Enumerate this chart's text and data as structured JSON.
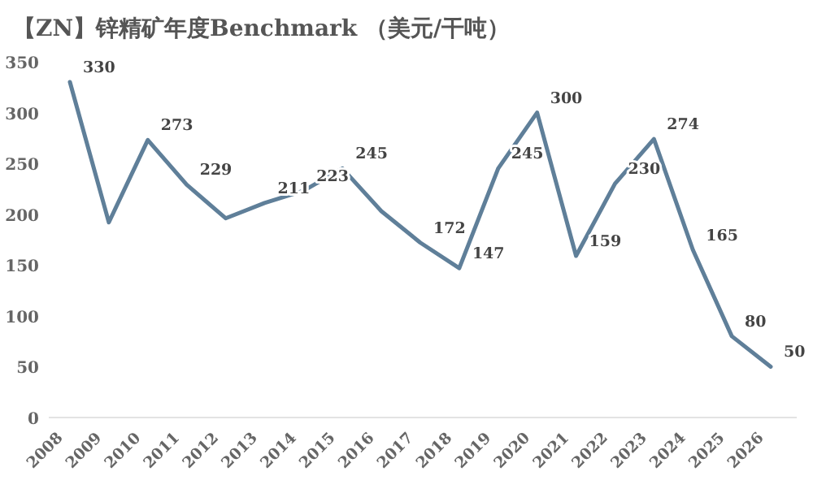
{
  "chart_data": {
    "type": "line",
    "title": "【ZN】锌精矿年度Benchmark （美元/干吨）",
    "categories": [
      "2008",
      "2009",
      "2010",
      "2011",
      "2012",
      "2013",
      "2014",
      "2015",
      "2016",
      "2017",
      "2018",
      "2019",
      "2020",
      "2021",
      "2022",
      "2023",
      "2024",
      "2025",
      "2026"
    ],
    "values": [
      330,
      192,
      273,
      229,
      196,
      211,
      223,
      245,
      203,
      172,
      147,
      245,
      300,
      159,
      230,
      274,
      165,
      80,
      50
    ],
    "value_labels": [
      "330",
      null,
      "273",
      "229",
      null,
      "211",
      "223",
      "245",
      null,
      "172",
      "147",
      "245",
      "300",
      "159",
      "230",
      "274",
      "165",
      "80",
      "50"
    ],
    "color": "#5f7f99",
    "ylim": [
      0,
      350
    ],
    "yticks": [
      0,
      50,
      100,
      150,
      200,
      250,
      300,
      350
    ],
    "grid": false,
    "marker": "none",
    "line_style": "solid"
  }
}
